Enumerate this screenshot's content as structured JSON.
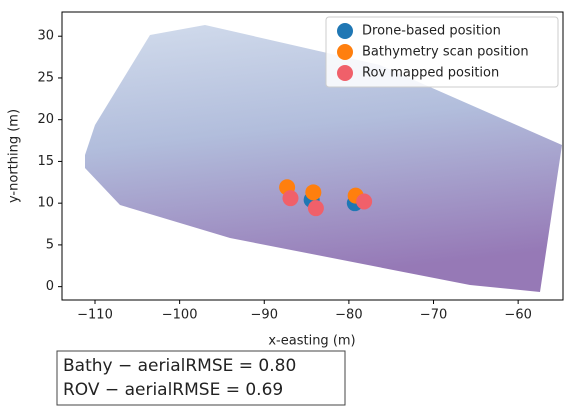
{
  "chart_data": {
    "type": "scatter",
    "xlabel": "x-easting (m)",
    "ylabel": "y-northing (m)",
    "xlim": [
      -113.9,
      -54.7
    ],
    "ylim": [
      -1.6,
      32.9
    ],
    "xticks": [
      {
        "value": -110,
        "label": "−110"
      },
      {
        "value": -100,
        "label": "−100"
      },
      {
        "value": -90,
        "label": "−90"
      },
      {
        "value": -80,
        "label": "−80"
      },
      {
        "value": -70,
        "label": "−70"
      },
      {
        "value": -60,
        "label": "−60"
      }
    ],
    "yticks": [
      0,
      5,
      10,
      15,
      20,
      25,
      30
    ],
    "legend": "upper right",
    "series": [
      {
        "name": "Drone-based position",
        "color": "#1f77b4",
        "x": [
          -84.4,
          -79.3
        ],
        "values": [
          10.4,
          10.0
        ]
      },
      {
        "name": "Bathymetry scan position",
        "color": "#ff7f0e",
        "x": [
          -87.3,
          -84.2,
          -79.2
        ],
        "values": [
          11.9,
          11.3,
          10.9
        ]
      },
      {
        "name": "Rov mapped position",
        "color": "#f0606a",
        "x": [
          -86.9,
          -83.9,
          -78.2
        ],
        "values": [
          10.6,
          9.4,
          10.2
        ]
      }
    ],
    "annotations": [
      "Bathy − aerialRMSE = 0.80",
      "ROV − aerialRMSE = 0.69"
    ]
  }
}
